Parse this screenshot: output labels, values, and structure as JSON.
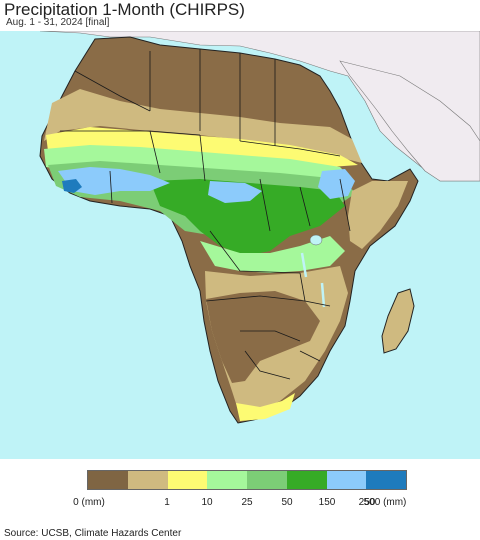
{
  "header": {
    "title": "Precipitation 1-Month (CHIRPS)",
    "subtitle": "Aug. 1 - 31, 2024 [final]"
  },
  "map": {
    "region": "Africa",
    "ocean_color": "#bff3f7",
    "outside_land_color": "#f0ebf0"
  },
  "legend": {
    "colors": [
      "#7f6543",
      "#cfba80",
      "#fdfb73",
      "#a5f89b",
      "#7ccd76",
      "#36ab26",
      "#8ccbfb",
      "#1e7bbd"
    ],
    "labels": [
      "0 (mm)",
      "1",
      "10",
      "25",
      "50",
      "150",
      "250",
      "500 (mm)"
    ]
  },
  "footer": {
    "source": "Source: UCSB, Climate Hazards Center"
  }
}
